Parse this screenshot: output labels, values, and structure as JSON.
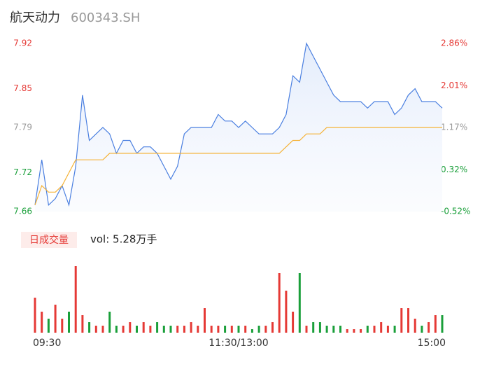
{
  "header": {
    "name": "航天动力",
    "code": "600343.SH"
  },
  "chart_data": [
    {
      "type": "line",
      "x": [
        0,
        4,
        8,
        12,
        16,
        20,
        24,
        28,
        32,
        36,
        40,
        44,
        48,
        52,
        56,
        60,
        64,
        68,
        72,
        76,
        80,
        84,
        88,
        92,
        96,
        100,
        104,
        108,
        112,
        116,
        120,
        124,
        128,
        132,
        136,
        140,
        144,
        148,
        152,
        156,
        160,
        164,
        168,
        172,
        176,
        180,
        184,
        188,
        192,
        196,
        200,
        204,
        208,
        212,
        216,
        220,
        224,
        228,
        232,
        236,
        240
      ],
      "xlim": [
        0,
        240
      ],
      "ylim": [
        7.66,
        7.92
      ],
      "yticks": [
        7.92,
        7.85,
        7.79,
        7.72,
        7.66
      ],
      "y2lim": [
        -0.52,
        2.86
      ],
      "y2ticks": [
        {
          "value": 2.86,
          "label": "2.86%"
        },
        {
          "value": 2.01,
          "label": "2.01%"
        },
        {
          "value": 1.17,
          "label": "1.17%"
        },
        {
          "value": 0.32,
          "label": "0.32%"
        },
        {
          "value": -0.52,
          "label": "-0.52%"
        }
      ],
      "up_color": "#e53935",
      "down_color": "#1a9f3a",
      "flat_color": "#999999",
      "series": [
        {
          "name": "price",
          "color": "#4a7fe0",
          "values": [
            7.67,
            7.74,
            7.67,
            7.68,
            7.7,
            7.67,
            7.73,
            7.84,
            7.77,
            7.78,
            7.79,
            7.78,
            7.75,
            7.77,
            7.77,
            7.75,
            7.76,
            7.76,
            7.75,
            7.73,
            7.71,
            7.73,
            7.78,
            7.79,
            7.79,
            7.79,
            7.79,
            7.81,
            7.8,
            7.8,
            7.79,
            7.8,
            7.79,
            7.78,
            7.78,
            7.78,
            7.79,
            7.81,
            7.87,
            7.86,
            7.92,
            7.9,
            7.88,
            7.86,
            7.84,
            7.83,
            7.83,
            7.83,
            7.83,
            7.82,
            7.83,
            7.83,
            7.83,
            7.81,
            7.82,
            7.84,
            7.85,
            7.83,
            7.83,
            7.83,
            7.82
          ]
        },
        {
          "name": "avg",
          "color": "#f5b235",
          "values": [
            7.67,
            7.7,
            7.69,
            7.69,
            7.7,
            7.72,
            7.74,
            7.74,
            7.74,
            7.74,
            7.74,
            7.75,
            7.75,
            7.75,
            7.75,
            7.75,
            7.75,
            7.75,
            7.75,
            7.75,
            7.75,
            7.75,
            7.75,
            7.75,
            7.75,
            7.75,
            7.75,
            7.75,
            7.75,
            7.75,
            7.75,
            7.75,
            7.75,
            7.75,
            7.75,
            7.75,
            7.75,
            7.76,
            7.77,
            7.77,
            7.78,
            7.78,
            7.78,
            7.79,
            7.79,
            7.79,
            7.79,
            7.79,
            7.79,
            7.79,
            7.79,
            7.79,
            7.79,
            7.79,
            7.79,
            7.79,
            7.79,
            7.79,
            7.79,
            7.79,
            7.79
          ]
        }
      ]
    },
    {
      "type": "bar",
      "legend_label": "日成交量",
      "summary": "vol: 5.28万手",
      "x": [
        0,
        4,
        8,
        12,
        16,
        20,
        24,
        28,
        32,
        36,
        40,
        44,
        48,
        52,
        56,
        60,
        64,
        68,
        72,
        76,
        80,
        84,
        88,
        92,
        96,
        100,
        104,
        108,
        112,
        116,
        120,
        124,
        128,
        132,
        136,
        140,
        144,
        148,
        152,
        156,
        160,
        164,
        168,
        172,
        176,
        180,
        184,
        188,
        192,
        196,
        200,
        204,
        208,
        212,
        216,
        220,
        224,
        228,
        232,
        236,
        240
      ],
      "xlim": [
        0,
        240
      ],
      "ylim": [
        0,
        2500
      ],
      "xticks": [
        {
          "value": 0,
          "label": "09:30"
        },
        {
          "value": 120,
          "label": "11:30/13:00"
        },
        {
          "value": 240,
          "label": "15:00"
        }
      ],
      "values": [
        1250,
        750,
        500,
        1000,
        500,
        750,
        2375,
        625,
        375,
        250,
        250,
        750,
        250,
        250,
        375,
        250,
        375,
        250,
        375,
        250,
        250,
        250,
        250,
        375,
        250,
        875,
        250,
        250,
        250,
        250,
        250,
        250,
        125,
        250,
        250,
        375,
        2125,
        1500,
        750,
        2125,
        250,
        375,
        375,
        250,
        250,
        250,
        125,
        125,
        125,
        250,
        250,
        375,
        250,
        250,
        875,
        875,
        500,
        250,
        375,
        625,
        625
      ]
    }
  ]
}
